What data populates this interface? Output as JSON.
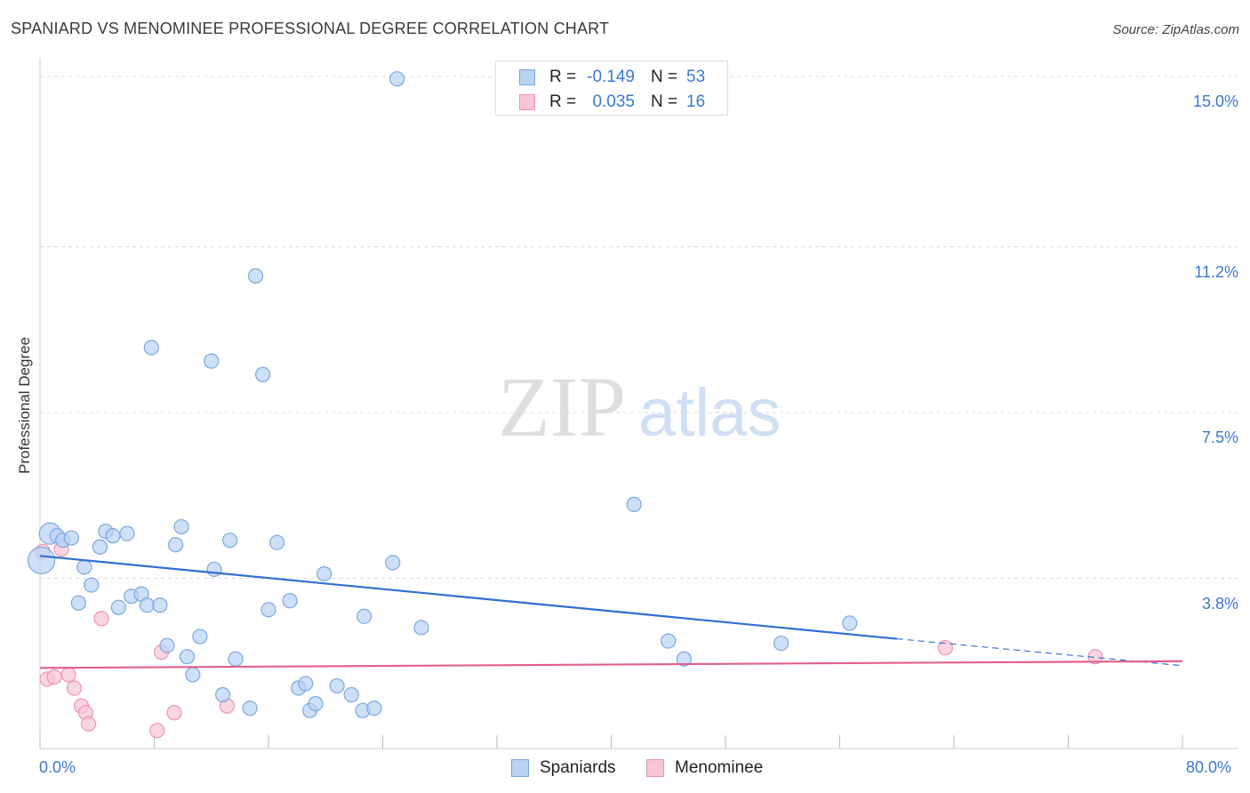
{
  "title": "SPANIARD VS MENOMINEE PROFESSIONAL DEGREE CORRELATION CHART",
  "source": "Source: ZipAtlas.com",
  "watermark": {
    "zip": "ZIP",
    "atlas": "atlas"
  },
  "colors": {
    "blue_fill": "#b9d3f3",
    "blue_stroke": "#7aa7e0",
    "blue_line": "#2f6fd0",
    "pink_fill": "#f8c5d5",
    "pink_stroke": "#ec93b0",
    "pink_line": "#e0608a",
    "label_blue": "#3b78d1",
    "grid": "#d9d9d9"
  },
  "legend": {
    "rows": [
      {
        "r_label": "R =",
        "r_value": "-0.149",
        "n_label": "N =",
        "n_value": "53"
      },
      {
        "r_label": "R =",
        "r_value": "0.035",
        "n_label": "N =",
        "n_value": "16"
      }
    ],
    "bottom": [
      "Spaniards",
      "Menominee"
    ]
  },
  "chart_data": {
    "type": "scatter",
    "title": "SPANIARD VS MENOMINEE PROFESSIONAL DEGREE CORRELATION CHART",
    "xlabel": "",
    "ylabel": "Professional Degree",
    "xlim": [
      0,
      80
    ],
    "ylim": [
      0,
      15.4
    ],
    "x_tick_labels": [
      "0.0%",
      "80.0%"
    ],
    "y_ticks": [
      3.8,
      7.5,
      11.2,
      15.0
    ],
    "y_tick_labels": [
      "3.8%",
      "7.5%",
      "11.2%",
      "15.0%"
    ],
    "grid": true,
    "series": [
      {
        "name": "Spaniards",
        "r": -0.149,
        "n": 53,
        "trend": {
          "x0": 0,
          "y0": 4.3,
          "x1": 60,
          "y1": 2.45,
          "dashed_to_x": 80,
          "dashed_to_y": 1.85
        },
        "points": [
          [
            0.1,
            4.2
          ],
          [
            0.7,
            4.8
          ],
          [
            1.2,
            4.75
          ],
          [
            1.6,
            4.65
          ],
          [
            2.2,
            4.7
          ],
          [
            3.1,
            4.05
          ],
          [
            2.7,
            3.25
          ],
          [
            3.6,
            3.65
          ],
          [
            4.2,
            4.5
          ],
          [
            4.6,
            4.85
          ],
          [
            5.1,
            4.75
          ],
          [
            6.1,
            4.8
          ],
          [
            5.5,
            3.15
          ],
          [
            6.4,
            3.4
          ],
          [
            7.1,
            3.45
          ],
          [
            7.5,
            3.2
          ],
          [
            8.4,
            3.2
          ],
          [
            7.8,
            8.95
          ],
          [
            9.5,
            4.55
          ],
          [
            9.9,
            4.95
          ],
          [
            10.3,
            2.05
          ],
          [
            8.9,
            2.3
          ],
          [
            10.7,
            1.65
          ],
          [
            11.2,
            2.5
          ],
          [
            12.0,
            8.65
          ],
          [
            12.2,
            4.0
          ],
          [
            13.3,
            4.65
          ],
          [
            13.7,
            2.0
          ],
          [
            12.8,
            1.2
          ],
          [
            14.7,
            0.9
          ],
          [
            15.1,
            10.55
          ],
          [
            15.6,
            8.35
          ],
          [
            16.6,
            4.6
          ],
          [
            16.0,
            3.1
          ],
          [
            17.5,
            3.3
          ],
          [
            18.1,
            1.35
          ],
          [
            18.6,
            1.45
          ],
          [
            18.9,
            0.85
          ],
          [
            19.3,
            1.0
          ],
          [
            19.9,
            3.9
          ],
          [
            20.8,
            1.4
          ],
          [
            21.8,
            1.2
          ],
          [
            22.6,
            0.85
          ],
          [
            22.7,
            2.95
          ],
          [
            23.4,
            0.9
          ],
          [
            24.7,
            4.15
          ],
          [
            25.0,
            14.95
          ],
          [
            26.7,
            2.7
          ],
          [
            41.6,
            5.45
          ],
          [
            44.0,
            2.4
          ],
          [
            45.1,
            2.0
          ],
          [
            51.9,
            2.35
          ],
          [
            56.7,
            2.8
          ]
        ]
      },
      {
        "name": "Menominee",
        "r": 0.035,
        "n": 16,
        "trend": {
          "x0": 0,
          "y0": 1.8,
          "x1": 80,
          "y1": 1.95
        },
        "points": [
          [
            0.2,
            4.4
          ],
          [
            0.5,
            1.55
          ],
          [
            1.0,
            1.6
          ],
          [
            1.5,
            4.45
          ],
          [
            2.0,
            1.65
          ],
          [
            2.4,
            1.35
          ],
          [
            2.9,
            0.95
          ],
          [
            3.2,
            0.8
          ],
          [
            3.4,
            0.55
          ],
          [
            4.3,
            2.9
          ],
          [
            8.2,
            0.4
          ],
          [
            8.5,
            2.15
          ],
          [
            9.4,
            0.8
          ],
          [
            13.1,
            0.95
          ],
          [
            63.4,
            2.25
          ],
          [
            73.9,
            2.05
          ]
        ]
      }
    ]
  }
}
